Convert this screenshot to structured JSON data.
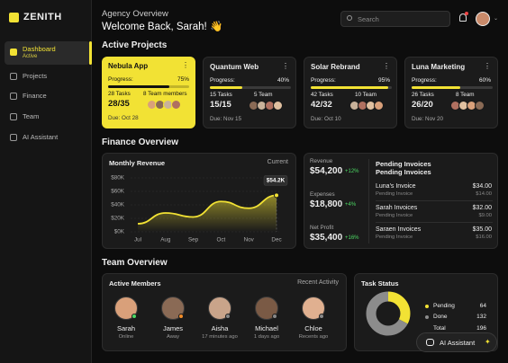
{
  "sidebar": {
    "logo": "ZENITH",
    "nav": [
      {
        "label": "Dashboard",
        "status": "Active"
      },
      {
        "label": "Projects"
      },
      {
        "label": "Finance"
      },
      {
        "label": "Team"
      },
      {
        "label": "AI Assistant"
      }
    ]
  },
  "header": {
    "title": "Agency Overview",
    "welcome": "Welcome Back, Sarah! 👋",
    "search": "Search"
  },
  "projects": {
    "title": "Active Projects",
    "progress_caption": "Progress:",
    "cards": [
      {
        "name": "Nebula App",
        "progress": {
          "value": 75,
          "label": "75%"
        },
        "tasks": "28 Tasks",
        "team": "8 Team members",
        "count": "28/35",
        "due": "Due: Oct 28"
      },
      {
        "name": "Quantum Web",
        "progress": {
          "value": 40,
          "label": "40%"
        },
        "tasks": "15 Tasks",
        "team": "5 Team",
        "count": "15/15",
        "due": "Due: Nov 15"
      },
      {
        "name": "Solar Rebrand",
        "progress": {
          "value": 95,
          "label": "95%"
        },
        "tasks": "42 Tasks",
        "team": "10 Team",
        "count": "42/32",
        "due": "Due: Oct 10"
      },
      {
        "name": "Luna Marketing",
        "progress": {
          "value": 60,
          "label": "60%"
        },
        "tasks": "26 Tasks",
        "team": "8 Team",
        "count": "26/20",
        "due": "Due: Nov 20"
      }
    ]
  },
  "finance": {
    "title": "Finance Overview",
    "revenue_card": {
      "title": "Monthly Revenue",
      "filter": "Current"
    },
    "stats": [
      {
        "label": "Revenue",
        "value": "$54,200",
        "change": "+12%"
      },
      {
        "label": "Expenses",
        "value": "$18,800",
        "change": "+4%"
      },
      {
        "label": "Net Profit",
        "value": "$35,400",
        "change": "+16%"
      }
    ],
    "invoices": {
      "title": "Pending Invoices",
      "subtitle": "Pending Invoices",
      "items": [
        {
          "name": "Luna's Invoice",
          "amount": "$34.00",
          "pending_label": "Pending Invoice",
          "pending": "$14.00"
        },
        {
          "name": "Sarah Invoices",
          "amount": "$32.00",
          "pending_label": "Pending Invoice",
          "pending": "$9.00"
        },
        {
          "name": "Saraen Invoices",
          "amount": "$35.00",
          "pending_label": "Pending Invoice",
          "pending": "$16.00"
        }
      ]
    }
  },
  "chart_data": {
    "type": "line",
    "categories": [
      "Jul",
      "Aug",
      "Sep",
      "Oct",
      "Nov",
      "Dec"
    ],
    "values": [
      12,
      28,
      22,
      45,
      35,
      54.2
    ],
    "value_labels": [
      null,
      null,
      null,
      null,
      null,
      "$54.2K"
    ],
    "color": "#f2e234",
    "ylim": [
      0,
      80
    ],
    "yticks": [
      {
        "value": 0,
        "label": "$0K"
      },
      {
        "value": 20,
        "label": "$20K"
      },
      {
        "value": 40,
        "label": "$40K"
      },
      {
        "value": 60,
        "label": "$60K"
      },
      {
        "value": 80,
        "label": "$80K"
      }
    ],
    "grid": true
  },
  "team": {
    "title": "Team Overview",
    "members_card": {
      "title": "Active Members",
      "filter": "Recent Activity",
      "members": [
        {
          "name": "Sarah",
          "status": "Online"
        },
        {
          "name": "James",
          "status": "Away"
        },
        {
          "name": "Aisha",
          "status": "17 minutes ago"
        },
        {
          "name": "Michael",
          "status": "1 days ago"
        },
        {
          "name": "Chloe",
          "status": "Recents ago"
        }
      ]
    },
    "task_status": {
      "title": "Task Status",
      "items": [
        {
          "label": "Pending",
          "value": 64,
          "color": "#f2e234"
        },
        {
          "label": "Done",
          "value": 132,
          "color": "#8c8c8c"
        }
      ],
      "total_label": "Total",
      "total": 196
    }
  },
  "assistant_button": "AI Assistant"
}
